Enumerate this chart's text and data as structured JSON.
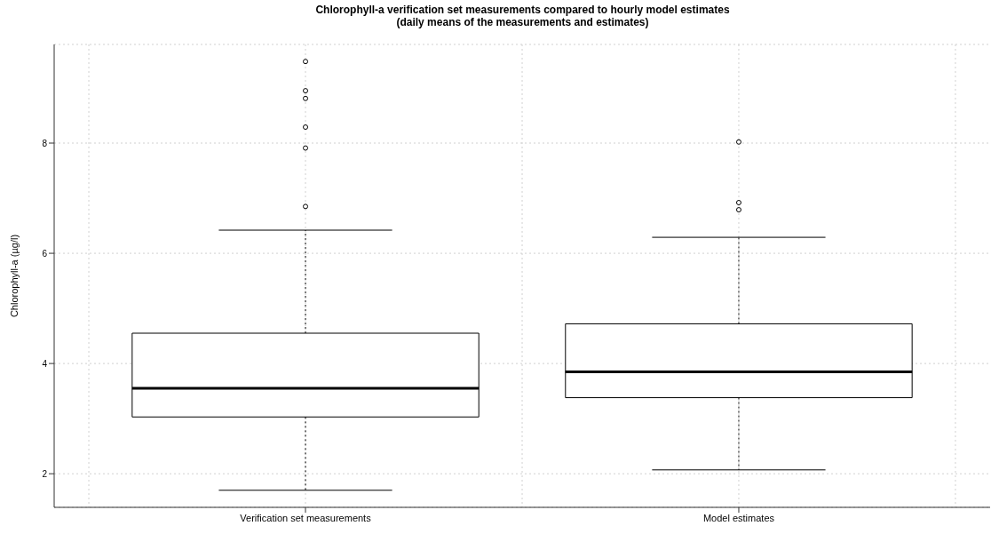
{
  "chart_data": {
    "type": "box",
    "title": "Chlorophyll-a verification set measurements compared to hourly model estimates",
    "subtitle": "(daily means of the measurements and estimates)",
    "ylabel": "Chlorophyll-a (µg/l)",
    "categories": [
      "Verification set measurements",
      "Model estimates"
    ],
    "boxes": [
      {
        "low": 1.7,
        "q1": 3.03,
        "median": 3.55,
        "q3": 4.55,
        "high": 6.42,
        "outliers": [
          9.48,
          8.95,
          8.81,
          8.29,
          7.91,
          6.85
        ]
      },
      {
        "low": 2.07,
        "q1": 3.38,
        "median": 3.85,
        "q3": 4.72,
        "high": 6.29,
        "outliers": [
          8.02,
          6.92,
          6.79
        ]
      }
    ],
    "color": "#000000",
    "ylim": [
      1.39,
      9.79
    ],
    "yticks": [
      2,
      4,
      6,
      8
    ],
    "grid": true
  }
}
